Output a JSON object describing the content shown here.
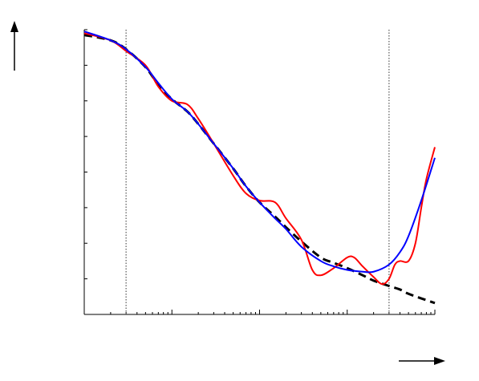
{
  "chart_data": {
    "type": "line",
    "title": "",
    "xlabel": "",
    "ylabel": "",
    "x_scale": "log",
    "xlim": [
      0.1,
      1000
    ],
    "ylim": [
      0,
      8
    ],
    "grid": false,
    "legend": "none",
    "vertical_reference_lines_x": [
      0.3,
      300
    ],
    "series": [
      {
        "color": "#ff0000",
        "style": "solid",
        "x": [
          0.1,
          0.2,
          0.3,
          0.5,
          0.7,
          1,
          1.5,
          2,
          3,
          5,
          7,
          10,
          15,
          20,
          30,
          40,
          50,
          70,
          100,
          120,
          150,
          200,
          250,
          300,
          350,
          400,
          500,
          600,
          700,
          800,
          1000
        ],
        "y": [
          7.9,
          7.7,
          7.4,
          7.0,
          6.4,
          6.0,
          5.9,
          5.5,
          4.8,
          3.9,
          3.4,
          3.2,
          3.15,
          2.7,
          2.1,
          1.25,
          1.1,
          1.3,
          1.6,
          1.6,
          1.35,
          1.05,
          0.85,
          1.0,
          1.4,
          1.5,
          1.5,
          2.0,
          3.0,
          3.8,
          4.7
        ]
      },
      {
        "color": "#0000ff",
        "style": "solid",
        "x": [
          0.1,
          0.2,
          0.3,
          0.5,
          0.7,
          1,
          1.5,
          2,
          3,
          5,
          7,
          10,
          15,
          20,
          30,
          50,
          70,
          100,
          150,
          200,
          300,
          400,
          500,
          700,
          1000
        ],
        "y": [
          7.95,
          7.7,
          7.45,
          6.95,
          6.5,
          6.05,
          5.7,
          5.35,
          4.8,
          4.1,
          3.6,
          3.15,
          2.7,
          2.4,
          1.9,
          1.5,
          1.35,
          1.25,
          1.2,
          1.2,
          1.4,
          1.75,
          2.2,
          3.2,
          4.4
        ]
      },
      {
        "color": "#000000",
        "style": "dashed",
        "x": [
          0.1,
          0.2,
          0.3,
          0.5,
          0.7,
          1,
          1.5,
          2,
          3,
          5,
          7,
          10,
          15,
          20,
          30,
          50,
          70,
          100,
          150,
          200,
          300,
          400,
          500,
          700,
          1000
        ],
        "y": [
          7.85,
          7.7,
          7.45,
          6.95,
          6.45,
          6.05,
          5.7,
          5.35,
          4.8,
          4.1,
          3.6,
          3.15,
          2.75,
          2.45,
          2.05,
          1.6,
          1.45,
          1.3,
          1.1,
          0.95,
          0.8,
          0.7,
          0.58,
          0.45,
          0.32
        ]
      }
    ]
  }
}
